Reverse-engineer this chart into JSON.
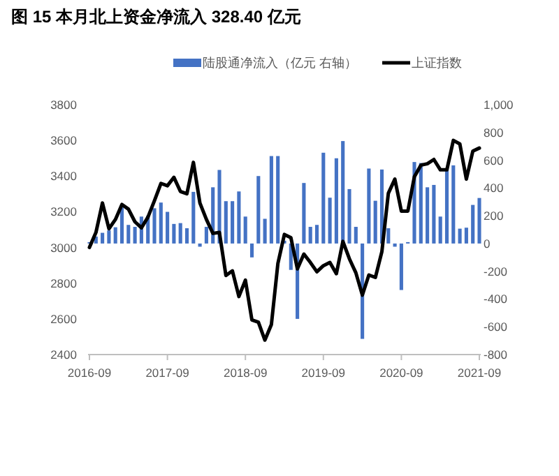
{
  "chart_data": {
    "type": "bar",
    "title": "图 15  本月北上资金净流入 328.40 亿元",
    "categories": [
      "2016-09",
      null,
      null,
      null,
      null,
      null,
      null,
      null,
      null,
      null,
      null,
      null,
      "2017-09",
      null,
      null,
      null,
      null,
      null,
      null,
      null,
      null,
      null,
      null,
      null,
      "2018-09",
      null,
      null,
      null,
      null,
      null,
      null,
      null,
      null,
      null,
      null,
      null,
      "2019-09",
      null,
      null,
      null,
      null,
      null,
      null,
      null,
      null,
      null,
      null,
      null,
      "2020-09",
      null,
      null,
      null,
      null,
      null,
      null,
      null,
      null,
      null,
      null,
      null,
      "2021-09"
    ],
    "series": [
      {
        "name": "陆股通净流入（亿元 右轴）",
        "axis": "y2",
        "color": "#4472c4",
        "values": [
          10,
          50,
          77,
          94,
          117,
          260,
          134,
          120,
          194,
          200,
          254,
          295,
          228,
          141,
          147,
          110,
          372,
          -23,
          120,
          405,
          530,
          305,
          305,
          375,
          194,
          -100,
          486,
          178,
          630,
          630,
          20,
          -190,
          -543,
          436,
          120,
          134,
          654,
          330,
          614,
          738,
          392,
          120,
          -687,
          540,
          308,
          533,
          110,
          -23,
          -335,
          10,
          587,
          580,
          405,
          422,
          194,
          540,
          563,
          107,
          114,
          278,
          328
        ]
      },
      {
        "name": "上证指数",
        "type": "line",
        "axis": "y",
        "color": "#000000",
        "values": [
          3000,
          3084,
          3249,
          3105,
          3157,
          3241,
          3215,
          3144,
          3110,
          3170,
          3262,
          3359,
          3346,
          3393,
          3314,
          3301,
          3477,
          3249,
          3157,
          3079,
          3084,
          2843,
          2869,
          2725,
          2817,
          2594,
          2581,
          2481,
          2568,
          2910,
          3073,
          3055,
          2880,
          2963,
          2916,
          2864,
          2898,
          2916,
          2853,
          3034,
          2937,
          2858,
          2733,
          2846,
          2832,
          2976,
          3304,
          3383,
          3204,
          3204,
          3396,
          3461,
          3469,
          3493,
          3435,
          3435,
          3600,
          3580,
          3383,
          3540,
          3557
        ]
      }
    ],
    "ylim": [
      2400,
      3800
    ],
    "yticks": [
      2400,
      2600,
      2800,
      3000,
      3200,
      3400,
      3600,
      3800
    ],
    "y2lim": [
      -800,
      1000
    ],
    "y2ticks": [
      -800,
      -600,
      -400,
      -200,
      0,
      200,
      400,
      600,
      800,
      {
        "value": 1000,
        "label": "1,000"
      }
    ],
    "legend": "top"
  }
}
